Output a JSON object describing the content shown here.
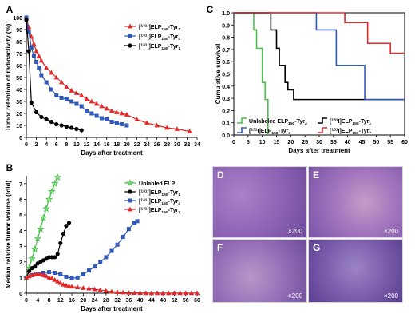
{
  "colors": {
    "red": "#e02a2a",
    "blue": "#2f58b8",
    "black": "#000000",
    "green": "#4cc24c"
  },
  "chart_data": [
    {
      "panel": "A",
      "type": "line",
      "xlabel": "Days after treatment",
      "ylabel": "Tumor retention of radioactivity (%)",
      "xlim": [
        0,
        34
      ],
      "ylim": [
        0,
        100
      ],
      "xticks": [
        0,
        2,
        4,
        6,
        8,
        10,
        12,
        14,
        16,
        18,
        20,
        22,
        24,
        26,
        28,
        30,
        32,
        34
      ],
      "yticks": [
        0,
        10,
        20,
        30,
        40,
        50,
        60,
        70,
        80,
        90,
        100
      ],
      "legend": "top-right",
      "series": [
        {
          "name": "[131I]ELP150-Tyr7",
          "color": "red",
          "marker": "triangle",
          "x": [
            0,
            0.5,
            1,
            1.5,
            2,
            2.5,
            3,
            4,
            5,
            6,
            7,
            8,
            9,
            10,
            11,
            12,
            13,
            14,
            15,
            16,
            17,
            18,
            19,
            20,
            22,
            24,
            26,
            28,
            30,
            32.5
          ],
          "y": [
            100,
            92,
            84,
            78,
            72,
            68,
            64,
            58,
            54,
            50,
            46,
            42,
            39,
            37,
            35,
            32,
            30,
            28,
            26,
            24,
            22,
            21,
            20,
            19,
            15,
            12,
            10,
            8,
            7,
            5
          ]
        },
        {
          "name": "[131I]ELP150-Tyr4",
          "color": "blue",
          "marker": "square",
          "x": [
            0,
            0.5,
            1,
            1.5,
            2,
            2.5,
            3,
            4,
            5,
            6,
            7,
            8,
            9,
            10,
            11,
            12,
            13,
            14,
            15,
            16,
            17,
            18,
            19,
            20
          ],
          "y": [
            100,
            88,
            75,
            68,
            63,
            58,
            52,
            46,
            40,
            35,
            33,
            32,
            30,
            28,
            26,
            22,
            20,
            18,
            16,
            15,
            13,
            12,
            11,
            10
          ]
        },
        {
          "name": "[131I]ELP150-Tyr1",
          "color": "black",
          "marker": "circle",
          "x": [
            0,
            0.5,
            1,
            2,
            3,
            4,
            5,
            6,
            7,
            8,
            9,
            10,
            11
          ],
          "y": [
            98,
            72,
            29,
            21,
            17,
            15,
            13,
            11,
            10,
            9,
            8,
            7,
            6
          ]
        }
      ]
    },
    {
      "panel": "B",
      "type": "line",
      "xlabel": "Days after treatment",
      "ylabel": "Median relative tumor volume (fold)",
      "xlim": [
        0,
        60
      ],
      "ylim": [
        0,
        7.5
      ],
      "xticks": [
        0,
        4,
        8,
        12,
        16,
        20,
        24,
        28,
        32,
        36,
        40,
        44,
        48,
        52,
        56,
        60
      ],
      "yticks": [
        0,
        1,
        2,
        3,
        4,
        5,
        6,
        7
      ],
      "legend": "top-right",
      "series": [
        {
          "name": "Unlabled ELP",
          "color": "green",
          "marker": "star",
          "x": [
            0,
            1,
            2,
            3,
            4,
            5,
            6,
            7,
            8,
            9,
            10,
            11
          ],
          "y": [
            1,
            1.6,
            2.2,
            2.8,
            3.5,
            4.1,
            4.8,
            5.4,
            6.0,
            6.5,
            7.0,
            7.4
          ]
        },
        {
          "name": "[131I]ELP150-Tyr1",
          "color": "black",
          "marker": "circle",
          "x": [
            0,
            1,
            2,
            3,
            4,
            5,
            6,
            7,
            8,
            9,
            10,
            11,
            12,
            13,
            14,
            15
          ],
          "y": [
            1,
            1.4,
            1.6,
            1.7,
            1.9,
            2.0,
            2.1,
            2.2,
            2.3,
            2.3,
            2.3,
            2.5,
            3.2,
            3.8,
            4.3,
            4.5
          ]
        },
        {
          "name": "[131I]ELP150-Tyr4",
          "color": "blue",
          "marker": "square",
          "x": [
            0,
            2,
            4,
            6,
            8,
            10,
            12,
            14,
            16,
            18,
            20,
            22,
            24,
            26,
            28,
            30,
            32,
            34,
            36,
            38,
            39
          ],
          "y": [
            1,
            1.15,
            1.25,
            1.3,
            1.35,
            1.3,
            1.2,
            1.05,
            0.95,
            1.0,
            1.2,
            1.45,
            1.7,
            2.0,
            2.3,
            2.7,
            3.1,
            3.6,
            4.1,
            4.5,
            4.6
          ]
        },
        {
          "name": "[131I]ELP150-Tyr7",
          "color": "red",
          "marker": "triangle",
          "x": [
            0,
            1,
            2,
            3,
            4,
            5,
            6,
            7,
            8,
            9,
            10,
            11,
            12,
            13,
            14,
            15,
            16,
            18,
            20,
            22,
            24,
            26,
            28,
            30,
            32,
            34,
            36,
            38,
            40,
            42,
            44,
            46,
            48,
            50,
            52,
            54,
            56,
            58,
            60
          ],
          "y": [
            1.0,
            1.08,
            1.15,
            1.2,
            1.22,
            1.2,
            1.15,
            1.1,
            1.0,
            0.95,
            0.85,
            0.75,
            0.65,
            0.55,
            0.5,
            0.45,
            0.42,
            0.38,
            0.33,
            0.3,
            0.25,
            0.2,
            0.15,
            0.1,
            0.07,
            0.05,
            0.03,
            0.02,
            0.02,
            0.01,
            0.01,
            0.01,
            0.01,
            0.01,
            0.01,
            0.01,
            0.01,
            0.01,
            0.01
          ]
        }
      ]
    },
    {
      "panel": "C",
      "type": "line",
      "step": true,
      "xlabel": "Days after treatment",
      "ylabel": "Cumulative survival",
      "xlim": [
        0,
        60
      ],
      "ylim": [
        0,
        1.0
      ],
      "xticks": [
        0,
        5,
        10,
        15,
        20,
        25,
        30,
        35,
        40,
        45,
        50,
        55,
        60
      ],
      "yticks": [
        0.0,
        0.1,
        0.2,
        0.3,
        0.4,
        0.5,
        0.6,
        0.7,
        0.8,
        0.9,
        1.0
      ],
      "legend": "bottom",
      "series": [
        {
          "name": "Unlabeled ELP150-Tyr4",
          "color": "green",
          "x": [
            0,
            7,
            8,
            10,
            11,
            12
          ],
          "y": [
            1.0,
            0.86,
            0.71,
            0.43,
            0.29,
            0.0
          ]
        },
        {
          "name": "[131I]ELP150-Tyr1",
          "color": "black",
          "x": [
            0,
            13,
            15,
            16,
            18,
            19,
            21,
            60
          ],
          "y": [
            1.0,
            0.86,
            0.71,
            0.57,
            0.43,
            0.37,
            0.29,
            0.29
          ]
        },
        {
          "name": "[131I]ELP150-Tyr4",
          "color": "blue",
          "x": [
            0,
            29,
            36,
            46,
            60
          ],
          "y": [
            1.0,
            0.86,
            0.57,
            0.29,
            0.29
          ]
        },
        {
          "name": "[131I]ELP150-Tyr7",
          "color": "red",
          "x": [
            0,
            39,
            47,
            55,
            60
          ],
          "y": [
            1.0,
            0.92,
            0.75,
            0.67,
            0.67
          ]
        }
      ]
    }
  ],
  "panels": {
    "a_letter": "A",
    "b_letter": "B",
    "c_letter": "C",
    "legend_a": [
      "[131I]ELP150-Tyr7",
      "[131I]ELP150-Tyr4",
      "[131I]ELP150-Tyr1"
    ],
    "legend_b": [
      "Unlabled ELP",
      "[131I]ELP150-Tyr1",
      "[131I]ELP150-Tyr4",
      "[131I]ELP150-Tyr7"
    ],
    "legend_c": [
      "Unlabeled ELP150-Tyr4",
      "[131I]ELP150-Tyr1",
      "[131I]ELP150-Tyr4",
      "[131I]ELP150-Tyr7"
    ]
  },
  "histology": [
    {
      "letter": "D",
      "mag": "×200"
    },
    {
      "letter": "E",
      "mag": "×200"
    },
    {
      "letter": "F",
      "mag": "×200"
    },
    {
      "letter": "G",
      "mag": "×200"
    }
  ]
}
